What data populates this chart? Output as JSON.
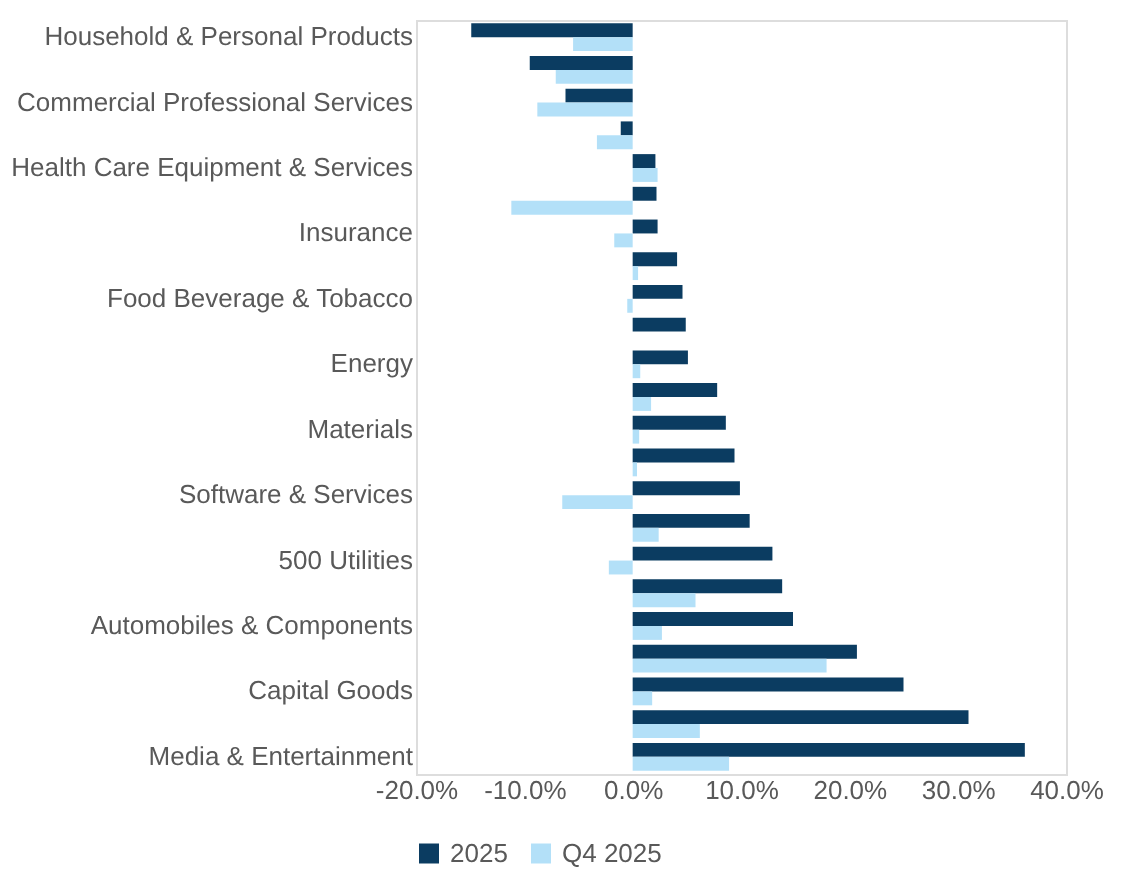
{
  "chart_data": {
    "type": "bar",
    "orientation": "horizontal",
    "categories": [
      "Household & Personal Products",
      null,
      "Commercial Professional Services",
      null,
      "Health Care Equipment & Services",
      null,
      "Insurance",
      null,
      "Food Beverage & Tobacco",
      null,
      "Energy",
      null,
      "Materials",
      null,
      "Software & Services",
      null,
      "500 Utilities",
      null,
      "Automobiles & Components",
      null,
      "Capital Goods",
      null,
      "Media & Entertainment"
    ],
    "series": [
      {
        "name": "2025",
        "color": "#0b3c61",
        "values": [
          -14.9,
          -9.5,
          -6.2,
          -1.1,
          2.1,
          2.2,
          2.3,
          4.1,
          4.6,
          4.9,
          5.1,
          7.8,
          8.6,
          9.4,
          9.9,
          10.8,
          12.9,
          13.8,
          14.8,
          20.7,
          25.0,
          31.0,
          36.2
        ]
      },
      {
        "name": "Q4 2025",
        "color": "#b3e0f8",
        "values": [
          -5.5,
          -7.1,
          -8.8,
          -3.3,
          2.3,
          -11.2,
          -1.7,
          0.5,
          -0.5,
          0.0,
          0.7,
          1.7,
          0.6,
          0.4,
          -6.5,
          2.4,
          -2.2,
          5.8,
          2.7,
          17.9,
          1.8,
          6.2,
          8.9
        ]
      }
    ],
    "xlim": [
      -20,
      40
    ],
    "xticks": [
      {
        "value": -20,
        "label": "-20.0%"
      },
      {
        "value": -10,
        "label": "-10.0%"
      },
      {
        "value": 0,
        "label": "0.0%"
      },
      {
        "value": 10,
        "label": "10.0%"
      },
      {
        "value": 20,
        "label": "20.0%"
      },
      {
        "value": 30,
        "label": "30.0%"
      },
      {
        "value": 40,
        "label": "40.0%"
      }
    ],
    "grid": false,
    "legend": "bottom"
  }
}
